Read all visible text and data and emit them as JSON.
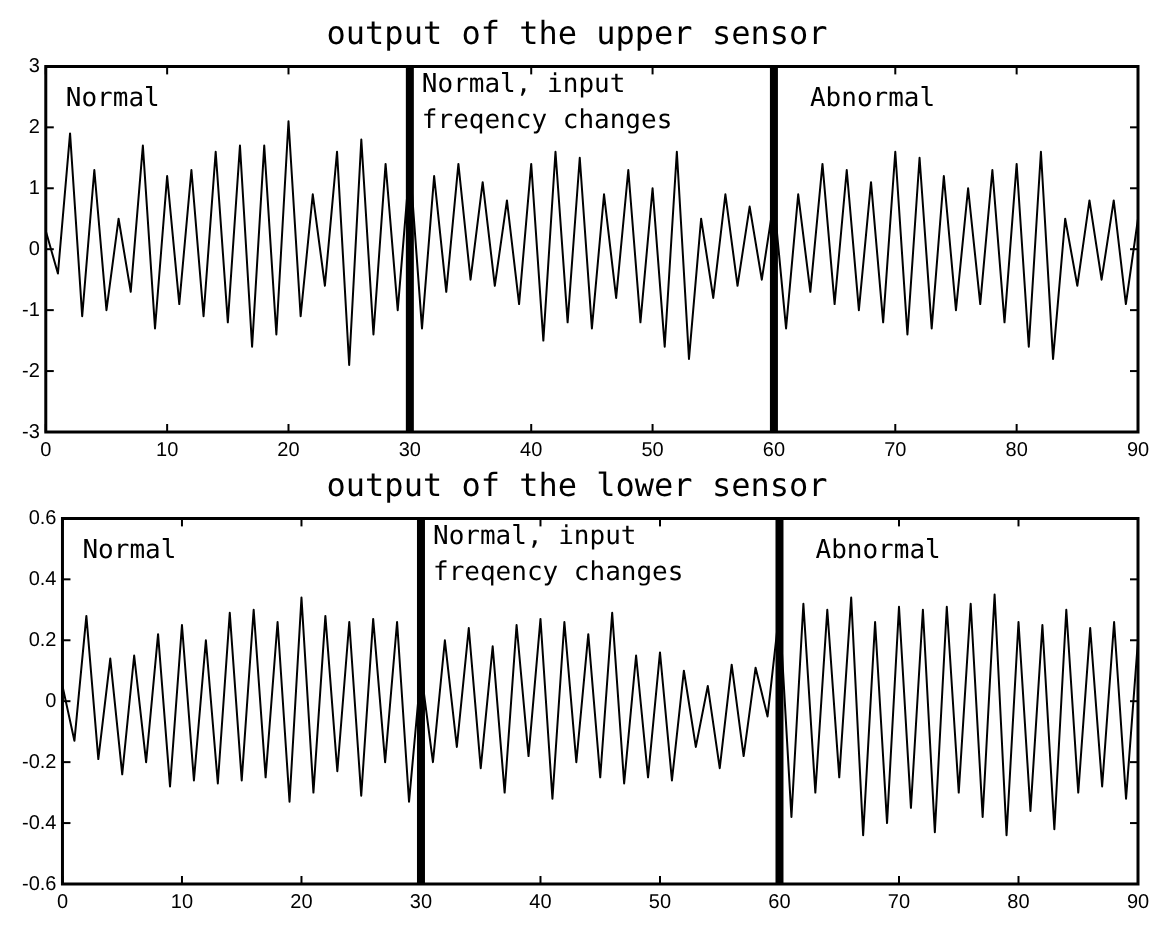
{
  "chart_data": [
    {
      "type": "line",
      "title": "output of the upper sensor",
      "color": "#000000",
      "marker": "none",
      "grid": false,
      "x": [
        0,
        1,
        2,
        3,
        4,
        5,
        6,
        7,
        8,
        9,
        10,
        11,
        12,
        13,
        14,
        15,
        16,
        17,
        18,
        19,
        20,
        21,
        22,
        23,
        24,
        25,
        26,
        27,
        28,
        29,
        30,
        31,
        32,
        33,
        34,
        35,
        36,
        37,
        38,
        39,
        40,
        41,
        42,
        43,
        44,
        45,
        46,
        47,
        48,
        49,
        50,
        51,
        52,
        53,
        54,
        55,
        56,
        57,
        58,
        59,
        60,
        61,
        62,
        63,
        64,
        65,
        66,
        67,
        68,
        69,
        70,
        71,
        72,
        73,
        74,
        75,
        76,
        77,
        78,
        79,
        80,
        81,
        82,
        83,
        84,
        85,
        86,
        87,
        88,
        89,
        90
      ],
      "values": [
        0.3,
        -0.4,
        1.9,
        -1.1,
        1.3,
        -1.0,
        0.5,
        -0.7,
        1.7,
        -1.3,
        1.2,
        -0.9,
        1.3,
        -1.1,
        1.6,
        -1.2,
        1.7,
        -1.6,
        1.7,
        -1.4,
        2.1,
        -1.1,
        0.9,
        -0.6,
        1.6,
        -1.9,
        1.8,
        -1.4,
        1.4,
        -1.0,
        1.4,
        -1.3,
        1.2,
        -0.7,
        1.4,
        -0.5,
        1.1,
        -0.6,
        0.8,
        -0.9,
        1.4,
        -1.5,
        1.6,
        -1.2,
        1.5,
        -1.3,
        0.9,
        -0.8,
        1.3,
        -1.2,
        1.0,
        -1.6,
        1.6,
        -1.8,
        0.5,
        -0.8,
        0.9,
        -0.6,
        0.7,
        -0.5,
        0.8,
        -1.3,
        0.9,
        -0.7,
        1.4,
        -0.9,
        1.3,
        -1.0,
        1.1,
        -1.2,
        1.6,
        -1.4,
        1.5,
        -1.3,
        1.2,
        -1.0,
        1.0,
        -0.9,
        1.3,
        -1.2,
        1.4,
        -1.6,
        1.6,
        -1.8,
        0.5,
        -0.6,
        0.8,
        -0.5,
        0.8,
        -0.9,
        0.5
      ],
      "xlim": [
        0,
        90
      ],
      "xticks": [
        0,
        10,
        20,
        30,
        40,
        50,
        60,
        70,
        80,
        90
      ],
      "ylim": [
        -3,
        3
      ],
      "yticks": [
        -3,
        -2,
        -1,
        0,
        1,
        2,
        3
      ],
      "ref_lines": [
        {
          "axis": "x",
          "value": 30,
          "color": "#000000"
        },
        {
          "axis": "x",
          "value": 60,
          "color": "#000000"
        }
      ],
      "annotations": [
        "Normal",
        "Normal, input\nfreqency changes",
        "Abnormal"
      ]
    },
    {
      "type": "line",
      "title": "output of the lower sensor",
      "color": "#000000",
      "marker": "none",
      "grid": false,
      "x": [
        0,
        1,
        2,
        3,
        4,
        5,
        6,
        7,
        8,
        9,
        10,
        11,
        12,
        13,
        14,
        15,
        16,
        17,
        18,
        19,
        20,
        21,
        22,
        23,
        24,
        25,
        26,
        27,
        28,
        29,
        30,
        31,
        32,
        33,
        34,
        35,
        36,
        37,
        38,
        39,
        40,
        41,
        42,
        43,
        44,
        45,
        46,
        47,
        48,
        49,
        50,
        51,
        52,
        53,
        54,
        55,
        56,
        57,
        58,
        59,
        60,
        61,
        62,
        63,
        64,
        65,
        66,
        67,
        68,
        69,
        70,
        71,
        72,
        73,
        74,
        75,
        76,
        77,
        78,
        79,
        80,
        81,
        82,
        83,
        84,
        85,
        86,
        87,
        88,
        89,
        90
      ],
      "values": [
        0.05,
        -0.13,
        0.28,
        -0.19,
        0.14,
        -0.24,
        0.15,
        -0.2,
        0.22,
        -0.28,
        0.25,
        -0.26,
        0.2,
        -0.27,
        0.29,
        -0.26,
        0.3,
        -0.25,
        0.26,
        -0.33,
        0.34,
        -0.3,
        0.28,
        -0.23,
        0.26,
        -0.31,
        0.27,
        -0.2,
        0.26,
        -0.33,
        0.1,
        -0.2,
        0.2,
        -0.15,
        0.24,
        -0.22,
        0.18,
        -0.3,
        0.25,
        -0.18,
        0.27,
        -0.32,
        0.26,
        -0.2,
        0.22,
        -0.25,
        0.29,
        -0.27,
        0.15,
        -0.25,
        0.16,
        -0.26,
        0.1,
        -0.15,
        0.05,
        -0.22,
        0.12,
        -0.18,
        0.11,
        -0.05,
        0.3,
        -0.38,
        0.32,
        -0.3,
        0.3,
        -0.25,
        0.34,
        -0.44,
        0.26,
        -0.4,
        0.31,
        -0.35,
        0.3,
        -0.43,
        0.31,
        -0.3,
        0.32,
        -0.38,
        0.35,
        -0.44,
        0.26,
        -0.36,
        0.25,
        -0.42,
        0.3,
        -0.3,
        0.24,
        -0.28,
        0.26,
        -0.32,
        0.2
      ],
      "xlim": [
        0,
        90
      ],
      "xticks": [
        0,
        10,
        20,
        30,
        40,
        50,
        60,
        70,
        80,
        90
      ],
      "ylim": [
        -0.6,
        0.6
      ],
      "yticks": [
        -0.6,
        -0.4,
        -0.2,
        0,
        0.2,
        0.4,
        0.6
      ],
      "ref_lines": [
        {
          "axis": "x",
          "value": 30,
          "color": "#000000"
        },
        {
          "axis": "x",
          "value": 60,
          "color": "#000000"
        }
      ],
      "annotations": [
        "Normal",
        "Normal, input\nfreqency changes",
        "Abnormal"
      ]
    }
  ]
}
